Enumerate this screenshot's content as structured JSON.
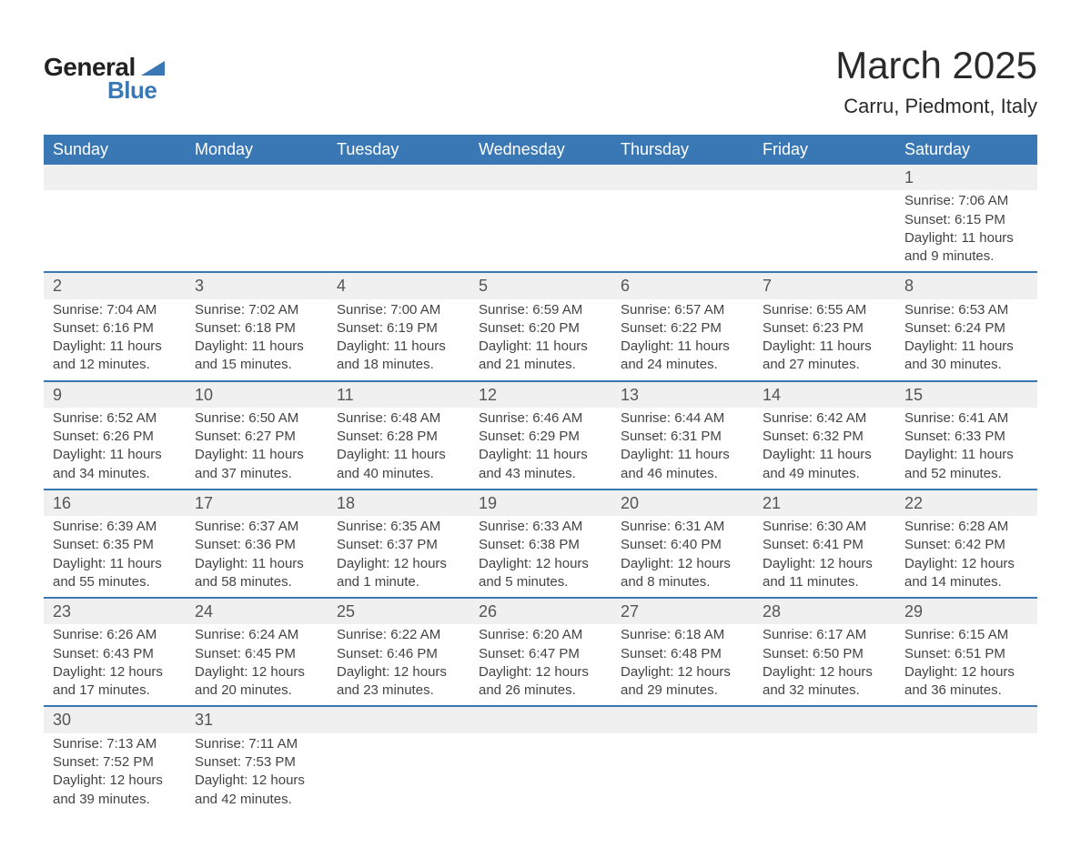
{
  "logo": {
    "text1": "General",
    "text2": "Blue"
  },
  "title": "March 2025",
  "location": "Carru, Piedmont, Italy",
  "colors": {
    "header_bg": "#3a78b5",
    "header_fg": "#ffffff",
    "daynum_bg": "#f0f0f0",
    "row_border": "#3a78b5",
    "text": "#3a3a3a",
    "page_bg": "#ffffff"
  },
  "fonts": {
    "title_size_pt": 32,
    "location_size_pt": 17,
    "header_size_pt": 14,
    "daynum_size_pt": 14,
    "body_size_pt": 11
  },
  "weekdays": [
    "Sunday",
    "Monday",
    "Tuesday",
    "Wednesday",
    "Thursday",
    "Friday",
    "Saturday"
  ],
  "weeks": [
    [
      null,
      null,
      null,
      null,
      null,
      null,
      {
        "n": "1",
        "sr": "Sunrise: 7:06 AM",
        "ss": "Sunset: 6:15 PM",
        "d1": "Daylight: 11 hours",
        "d2": "and 9 minutes."
      }
    ],
    [
      {
        "n": "2",
        "sr": "Sunrise: 7:04 AM",
        "ss": "Sunset: 6:16 PM",
        "d1": "Daylight: 11 hours",
        "d2": "and 12 minutes."
      },
      {
        "n": "3",
        "sr": "Sunrise: 7:02 AM",
        "ss": "Sunset: 6:18 PM",
        "d1": "Daylight: 11 hours",
        "d2": "and 15 minutes."
      },
      {
        "n": "4",
        "sr": "Sunrise: 7:00 AM",
        "ss": "Sunset: 6:19 PM",
        "d1": "Daylight: 11 hours",
        "d2": "and 18 minutes."
      },
      {
        "n": "5",
        "sr": "Sunrise: 6:59 AM",
        "ss": "Sunset: 6:20 PM",
        "d1": "Daylight: 11 hours",
        "d2": "and 21 minutes."
      },
      {
        "n": "6",
        "sr": "Sunrise: 6:57 AM",
        "ss": "Sunset: 6:22 PM",
        "d1": "Daylight: 11 hours",
        "d2": "and 24 minutes."
      },
      {
        "n": "7",
        "sr": "Sunrise: 6:55 AM",
        "ss": "Sunset: 6:23 PM",
        "d1": "Daylight: 11 hours",
        "d2": "and 27 minutes."
      },
      {
        "n": "8",
        "sr": "Sunrise: 6:53 AM",
        "ss": "Sunset: 6:24 PM",
        "d1": "Daylight: 11 hours",
        "d2": "and 30 minutes."
      }
    ],
    [
      {
        "n": "9",
        "sr": "Sunrise: 6:52 AM",
        "ss": "Sunset: 6:26 PM",
        "d1": "Daylight: 11 hours",
        "d2": "and 34 minutes."
      },
      {
        "n": "10",
        "sr": "Sunrise: 6:50 AM",
        "ss": "Sunset: 6:27 PM",
        "d1": "Daylight: 11 hours",
        "d2": "and 37 minutes."
      },
      {
        "n": "11",
        "sr": "Sunrise: 6:48 AM",
        "ss": "Sunset: 6:28 PM",
        "d1": "Daylight: 11 hours",
        "d2": "and 40 minutes."
      },
      {
        "n": "12",
        "sr": "Sunrise: 6:46 AM",
        "ss": "Sunset: 6:29 PM",
        "d1": "Daylight: 11 hours",
        "d2": "and 43 minutes."
      },
      {
        "n": "13",
        "sr": "Sunrise: 6:44 AM",
        "ss": "Sunset: 6:31 PM",
        "d1": "Daylight: 11 hours",
        "d2": "and 46 minutes."
      },
      {
        "n": "14",
        "sr": "Sunrise: 6:42 AM",
        "ss": "Sunset: 6:32 PM",
        "d1": "Daylight: 11 hours",
        "d2": "and 49 minutes."
      },
      {
        "n": "15",
        "sr": "Sunrise: 6:41 AM",
        "ss": "Sunset: 6:33 PM",
        "d1": "Daylight: 11 hours",
        "d2": "and 52 minutes."
      }
    ],
    [
      {
        "n": "16",
        "sr": "Sunrise: 6:39 AM",
        "ss": "Sunset: 6:35 PM",
        "d1": "Daylight: 11 hours",
        "d2": "and 55 minutes."
      },
      {
        "n": "17",
        "sr": "Sunrise: 6:37 AM",
        "ss": "Sunset: 6:36 PM",
        "d1": "Daylight: 11 hours",
        "d2": "and 58 minutes."
      },
      {
        "n": "18",
        "sr": "Sunrise: 6:35 AM",
        "ss": "Sunset: 6:37 PM",
        "d1": "Daylight: 12 hours",
        "d2": "and 1 minute."
      },
      {
        "n": "19",
        "sr": "Sunrise: 6:33 AM",
        "ss": "Sunset: 6:38 PM",
        "d1": "Daylight: 12 hours",
        "d2": "and 5 minutes."
      },
      {
        "n": "20",
        "sr": "Sunrise: 6:31 AM",
        "ss": "Sunset: 6:40 PM",
        "d1": "Daylight: 12 hours",
        "d2": "and 8 minutes."
      },
      {
        "n": "21",
        "sr": "Sunrise: 6:30 AM",
        "ss": "Sunset: 6:41 PM",
        "d1": "Daylight: 12 hours",
        "d2": "and 11 minutes."
      },
      {
        "n": "22",
        "sr": "Sunrise: 6:28 AM",
        "ss": "Sunset: 6:42 PM",
        "d1": "Daylight: 12 hours",
        "d2": "and 14 minutes."
      }
    ],
    [
      {
        "n": "23",
        "sr": "Sunrise: 6:26 AM",
        "ss": "Sunset: 6:43 PM",
        "d1": "Daylight: 12 hours",
        "d2": "and 17 minutes."
      },
      {
        "n": "24",
        "sr": "Sunrise: 6:24 AM",
        "ss": "Sunset: 6:45 PM",
        "d1": "Daylight: 12 hours",
        "d2": "and 20 minutes."
      },
      {
        "n": "25",
        "sr": "Sunrise: 6:22 AM",
        "ss": "Sunset: 6:46 PM",
        "d1": "Daylight: 12 hours",
        "d2": "and 23 minutes."
      },
      {
        "n": "26",
        "sr": "Sunrise: 6:20 AM",
        "ss": "Sunset: 6:47 PM",
        "d1": "Daylight: 12 hours",
        "d2": "and 26 minutes."
      },
      {
        "n": "27",
        "sr": "Sunrise: 6:18 AM",
        "ss": "Sunset: 6:48 PM",
        "d1": "Daylight: 12 hours",
        "d2": "and 29 minutes."
      },
      {
        "n": "28",
        "sr": "Sunrise: 6:17 AM",
        "ss": "Sunset: 6:50 PM",
        "d1": "Daylight: 12 hours",
        "d2": "and 32 minutes."
      },
      {
        "n": "29",
        "sr": "Sunrise: 6:15 AM",
        "ss": "Sunset: 6:51 PM",
        "d1": "Daylight: 12 hours",
        "d2": "and 36 minutes."
      }
    ],
    [
      {
        "n": "30",
        "sr": "Sunrise: 7:13 AM",
        "ss": "Sunset: 7:52 PM",
        "d1": "Daylight: 12 hours",
        "d2": "and 39 minutes."
      },
      {
        "n": "31",
        "sr": "Sunrise: 7:11 AM",
        "ss": "Sunset: 7:53 PM",
        "d1": "Daylight: 12 hours",
        "d2": "and 42 minutes."
      },
      null,
      null,
      null,
      null,
      null
    ]
  ]
}
